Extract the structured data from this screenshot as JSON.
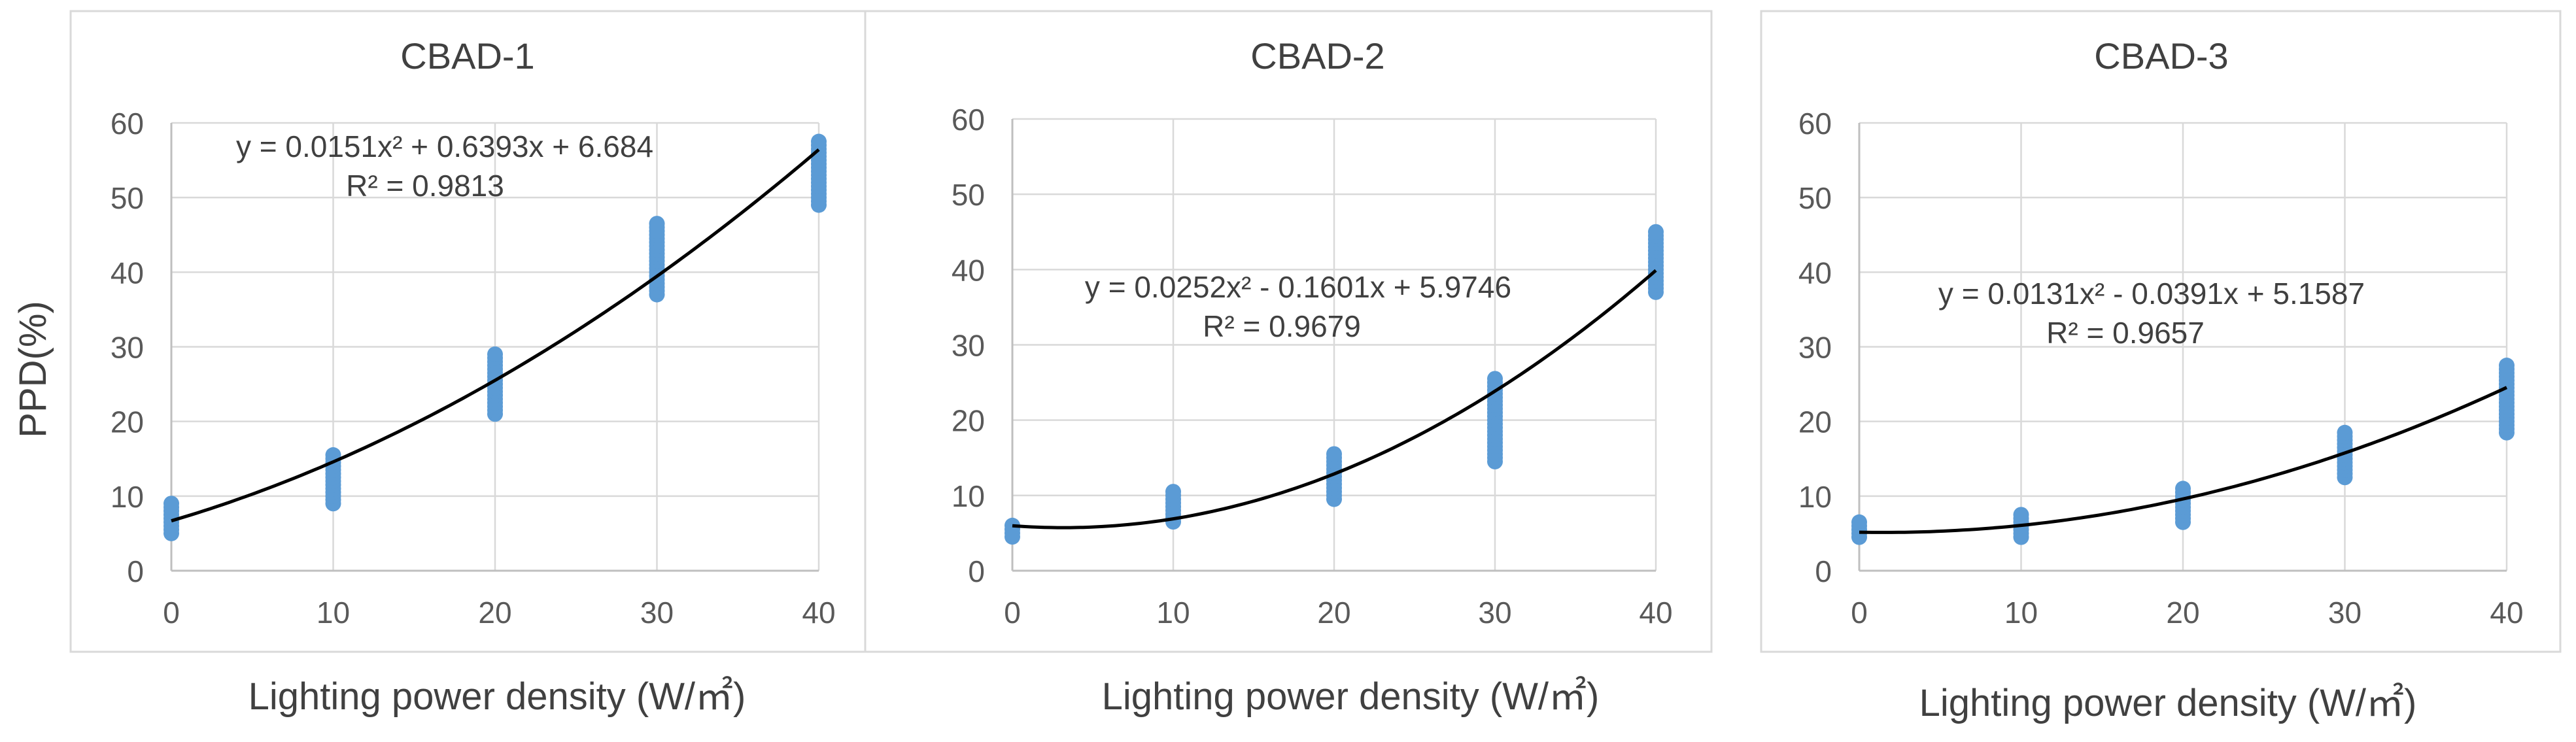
{
  "figure": {
    "y_axis_label": "PPD(%)",
    "colors": {
      "points": "#5B9BD5",
      "trend": "#000000",
      "grid": "#D9D9D9",
      "axis": "#BFBFBF",
      "text": "#595959",
      "frame": "#D9D9D9"
    }
  },
  "chart_data": [
    {
      "type": "scatter",
      "title": "CBAD-1",
      "xlabel": "Lighting power density (W/㎡)",
      "ylabel": "PPD(%)",
      "xlim": [
        0,
        40
      ],
      "ylim": [
        0,
        60
      ],
      "x_ticks": [
        0,
        10,
        20,
        30,
        40
      ],
      "y_ticks": [
        0,
        10,
        20,
        30,
        40,
        50,
        60
      ],
      "grid": true,
      "series": [
        {
          "name": "PPD",
          "x": [
            0,
            10,
            20,
            30,
            40
          ],
          "y_min": [
            5,
            9,
            21,
            37,
            49
          ],
          "y_max": [
            9,
            15.5,
            29,
            46.5,
            57.5
          ]
        }
      ],
      "trendline": {
        "type": "polynomial",
        "coefficients": [
          0.0151,
          0.6393,
          6.684
        ],
        "equation_text": "y = 0.0151x² + 0.6393x + 6.684",
        "r2_text": "R² = 0.9813"
      }
    },
    {
      "type": "scatter",
      "title": "CBAD-2",
      "xlabel": "Lighting power density (W/㎡)",
      "ylabel": "",
      "xlim": [
        0,
        40
      ],
      "ylim": [
        0,
        60
      ],
      "x_ticks": [
        0,
        10,
        20,
        30,
        40
      ],
      "y_ticks": [
        0,
        10,
        20,
        30,
        40,
        50,
        60
      ],
      "grid": true,
      "series": [
        {
          "name": "PPD",
          "x": [
            0,
            10,
            20,
            30,
            40
          ],
          "y_min": [
            4.5,
            6.5,
            9.5,
            14.5,
            37
          ],
          "y_max": [
            6,
            10.5,
            15.5,
            25.5,
            45
          ]
        }
      ],
      "trendline": {
        "type": "polynomial",
        "coefficients": [
          0.0252,
          -0.1601,
          5.9746
        ],
        "equation_text": "y = 0.0252x² - 0.1601x + 5.9746",
        "r2_text": "R² = 0.9679"
      }
    },
    {
      "type": "scatter",
      "title": "CBAD-3",
      "xlabel": "Lighting power density (W/㎡)",
      "ylabel": "",
      "xlim": [
        0,
        40
      ],
      "ylim": [
        0,
        60
      ],
      "x_ticks": [
        0,
        10,
        20,
        30,
        40
      ],
      "y_ticks": [
        0,
        10,
        20,
        30,
        40,
        50,
        60
      ],
      "grid": true,
      "series": [
        {
          "name": "PPD",
          "x": [
            0,
            10,
            20,
            30,
            40
          ],
          "y_min": [
            4.5,
            4.5,
            6.5,
            12.5,
            18.5
          ],
          "y_max": [
            6.5,
            7.5,
            11,
            18.5,
            27.5
          ]
        }
      ],
      "trendline": {
        "type": "polynomial",
        "coefficients": [
          0.0131,
          -0.0391,
          5.1587
        ],
        "equation_text": "y = 0.0131x² - 0.0391x + 5.1587",
        "r2_text": "R² = 0.9657"
      }
    }
  ]
}
